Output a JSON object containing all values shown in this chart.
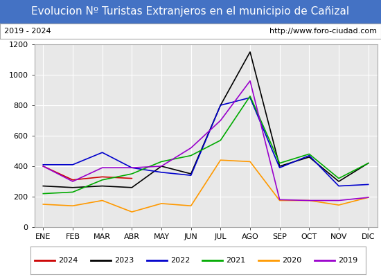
{
  "title": "Evolucion Nº Turistas Extranjeros en el municipio de Cañizal",
  "subtitle_left": "2019 - 2024",
  "subtitle_right": "http://www.foro-ciudad.com",
  "months": [
    "ENE",
    "FEB",
    "MAR",
    "ABR",
    "MAY",
    "JUN",
    "JUL",
    "AGO",
    "SEP",
    "OCT",
    "NOV",
    "DIC"
  ],
  "ylim": [
    0,
    1200
  ],
  "yticks": [
    0,
    200,
    400,
    600,
    800,
    1000,
    1200
  ],
  "series": {
    "2024": {
      "color": "#cc0000",
      "data": [
        400,
        310,
        330,
        320,
        null,
        null,
        null,
        null,
        null,
        null,
        null,
        null
      ]
    },
    "2023": {
      "color": "#000000",
      "data": [
        270,
        260,
        270,
        260,
        400,
        350,
        800,
        1150,
        400,
        460,
        300,
        420
      ]
    },
    "2022": {
      "color": "#0000cc",
      "data": [
        410,
        410,
        490,
        390,
        360,
        340,
        800,
        850,
        390,
        470,
        270,
        280
      ]
    },
    "2021": {
      "color": "#00aa00",
      "data": [
        220,
        230,
        310,
        350,
        430,
        470,
        570,
        860,
        420,
        480,
        320,
        420
      ]
    },
    "2020": {
      "color": "#ff9900",
      "data": [
        150,
        140,
        175,
        100,
        155,
        140,
        440,
        430,
        175,
        175,
        145,
        195
      ]
    },
    "2019": {
      "color": "#9900cc",
      "data": [
        400,
        300,
        390,
        390,
        400,
        520,
        700,
        960,
        180,
        175,
        175,
        195
      ]
    }
  },
  "legend_order": [
    "2024",
    "2023",
    "2022",
    "2021",
    "2020",
    "2019"
  ],
  "background_color": "#e8e8e8",
  "title_bg_color": "#4472c4",
  "title_color": "white",
  "grid_color": "white",
  "title_fontsize": 11,
  "axis_fontsize": 8,
  "legend_fontsize": 8
}
